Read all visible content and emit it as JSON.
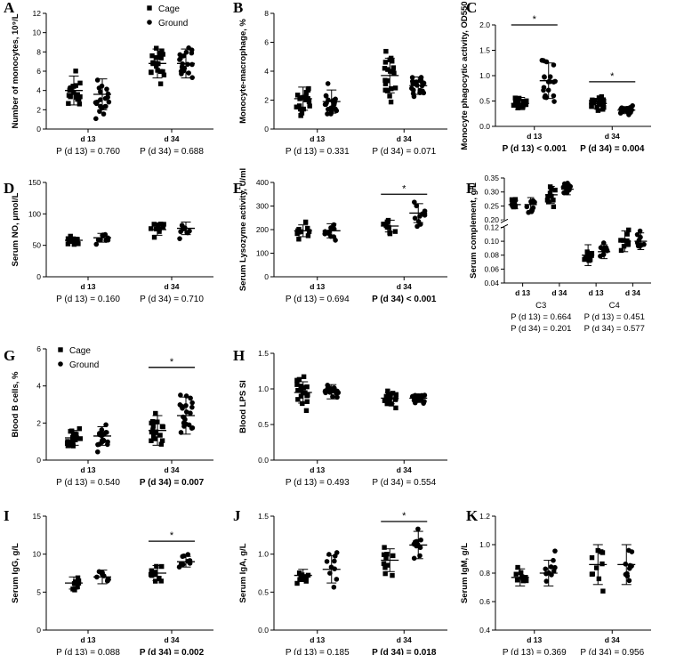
{
  "legend": {
    "cage": "Cage",
    "ground": "Ground"
  },
  "chart_data": [
    {
      "panel": "A",
      "type": "scatter",
      "ylabel": "Number of monocytes, 10⁹/L",
      "ylim": [
        0,
        12
      ],
      "yticks": [
        "0",
        "2",
        "4",
        "6",
        "8",
        "10",
        "12"
      ],
      "ytickvals": [
        0,
        2,
        4,
        6,
        8,
        10,
        12
      ],
      "categories": [
        "d 13",
        "d 34"
      ],
      "legend": "top-right",
      "series": [
        {
          "name": "Cage",
          "shape": "square",
          "mean": [
            4.0,
            6.8
          ],
          "sd": [
            1.5,
            1.5
          ]
        },
        {
          "name": "Ground",
          "shape": "circle",
          "mean": [
            3.6,
            6.8
          ],
          "sd": [
            1.6,
            1.5
          ]
        }
      ],
      "stars": [],
      "footer": [
        [
          "P (d 13) = 0.760",
          false
        ],
        [
          "P (d 34) = 0.688",
          false
        ]
      ]
    },
    {
      "panel": "B",
      "type": "scatter",
      "ylabel": "Monocyte-macrophage, %",
      "ylim": [
        0,
        8
      ],
      "yticks": [
        "0",
        "2",
        "4",
        "6",
        "8"
      ],
      "ytickvals": [
        0,
        2,
        4,
        6,
        8
      ],
      "categories": [
        "d 13",
        "d 34"
      ],
      "series": [
        {
          "name": "Cage",
          "shape": "square",
          "mean": [
            2.1,
            3.7
          ],
          "sd": [
            0.8,
            1.2
          ]
        },
        {
          "name": "Ground",
          "shape": "circle",
          "mean": [
            1.9,
            3.0
          ],
          "sd": [
            0.8,
            0.6
          ]
        }
      ],
      "stars": [],
      "footer": [
        [
          "P (d 13) = 0.331",
          false
        ],
        [
          "P (d 34) = 0.071",
          false
        ]
      ]
    },
    {
      "panel": "C",
      "type": "scatter",
      "ylabel": "Monocyte phagocytic activity, OD550",
      "ylim": [
        0,
        2
      ],
      "yticks": [
        "0.0",
        "0.5",
        "1.0",
        "1.5",
        "2.0"
      ],
      "ytickvals": [
        0,
        0.5,
        1.0,
        1.5,
        2.0
      ],
      "categories": [
        "d 13",
        "d 34"
      ],
      "series": [
        {
          "name": "Cage",
          "shape": "square",
          "mean": [
            0.45,
            0.45
          ],
          "sd": [
            0.12,
            0.1
          ]
        },
        {
          "name": "Ground",
          "shape": "circle",
          "mean": [
            0.9,
            0.32
          ],
          "sd": [
            0.35,
            0.07
          ]
        }
      ],
      "stars": [
        {
          "cat": 0,
          "y": 2.0,
          "text": "*"
        },
        {
          "cat": 1,
          "y": 0.88,
          "text": "*"
        }
      ],
      "footer": [
        [
          "P (d 13) < 0.001",
          true
        ],
        [
          "P (d 34) = 0.004",
          true
        ]
      ]
    },
    {
      "panel": "D",
      "type": "scatter",
      "ylabel": "Serum NO, μmol/L",
      "ylim": [
        0,
        150
      ],
      "yticks": [
        "0",
        "50",
        "100",
        "150"
      ],
      "ytickvals": [
        0,
        50,
        100,
        150
      ],
      "categories": [
        "d 13",
        "d 34"
      ],
      "series": [
        {
          "name": "Cage",
          "shape": "square",
          "mean": [
            58,
            75
          ],
          "sd": [
            5,
            9
          ]
        },
        {
          "name": "Ground",
          "shape": "circle",
          "mean": [
            62,
            77
          ],
          "sd": [
            7,
            10
          ]
        }
      ],
      "stars": [],
      "footer": [
        [
          "P (d 13) = 0.160",
          false
        ],
        [
          "P (d 34) = 0.710",
          false
        ]
      ]
    },
    {
      "panel": "E",
      "type": "scatter",
      "ylabel": "Serum Lysozyme activity, U/ml",
      "ylim": [
        0,
        400
      ],
      "yticks": [
        "0",
        "100",
        "200",
        "300",
        "400"
      ],
      "ytickvals": [
        0,
        100,
        200,
        300,
        400
      ],
      "categories": [
        "d 13",
        "d 34"
      ],
      "series": [
        {
          "name": "Cage",
          "shape": "square",
          "mean": [
            195,
            215
          ],
          "sd": [
            25,
            25
          ]
        },
        {
          "name": "Ground",
          "shape": "circle",
          "mean": [
            195,
            270
          ],
          "sd": [
            30,
            40
          ]
        }
      ],
      "stars": [
        {
          "cat": 1,
          "y": 350,
          "text": "*"
        }
      ],
      "footer": [
        [
          "P (d 13) = 0.694",
          false
        ],
        [
          "P (d 34) < 0.001",
          true
        ]
      ]
    },
    {
      "panel": "F",
      "type": "scatter",
      "ylabel": "Serum complement, g/L",
      "brokenAxis": true,
      "yticks": [
        "0.04",
        "0.06",
        "0.08",
        "0.10",
        "0.12",
        "0.20",
        "0.25",
        "0.30",
        "0.35"
      ],
      "ytickvals": [
        0.04,
        0.06,
        0.08,
        0.1,
        0.12,
        0.2,
        0.25,
        0.3,
        0.35
      ],
      "categories": [
        "d 13",
        "d 34",
        "d 13",
        "d 34"
      ],
      "groups": [
        "C3",
        "C4"
      ],
      "series": [
        {
          "name": "Cage",
          "shape": "square",
          "mean": [
            0.255,
            0.29,
            0.08,
            0.1
          ],
          "sd": [
            0.015,
            0.03,
            0.015,
            0.015
          ]
        },
        {
          "name": "Ground",
          "shape": "circle",
          "mean": [
            0.255,
            0.31,
            0.085,
            0.1
          ],
          "sd": [
            0.025,
            0.02,
            0.01,
            0.012
          ]
        }
      ],
      "stars": [],
      "footer": [
        [
          "C3",
          "C4"
        ],
        [
          "P (d 13) = 0.664",
          "P (d 13) = 0.451"
        ],
        [
          "P (d 34) = 0.201",
          "P (d 34) = 0.577"
        ]
      ]
    },
    {
      "panel": "G",
      "type": "scatter",
      "ylabel": "Blood B cells, %",
      "ylim": [
        0,
        6
      ],
      "yticks": [
        "0",
        "2",
        "4",
        "6"
      ],
      "ytickvals": [
        0,
        2,
        4,
        6
      ],
      "categories": [
        "d 13",
        "d 34"
      ],
      "legend": "top-left",
      "series": [
        {
          "name": "Cage",
          "shape": "square",
          "mean": [
            1.2,
            1.6
          ],
          "sd": [
            0.4,
            0.8
          ]
        },
        {
          "name": "Ground",
          "shape": "circle",
          "mean": [
            1.3,
            2.4
          ],
          "sd": [
            0.5,
            1.0
          ]
        }
      ],
      "stars": [
        {
          "cat": 1,
          "y": 5.0,
          "text": "*"
        }
      ],
      "footer": [
        [
          "P (d 13) = 0.540",
          false
        ],
        [
          "P (d 34) = 0.007",
          true
        ]
      ]
    },
    {
      "panel": "H",
      "type": "scatter",
      "ylabel": "Blood LPS SI",
      "ylim": [
        0,
        1.5
      ],
      "yticks": [
        "0.0",
        "0.5",
        "1.0",
        "1.5"
      ],
      "ytickvals": [
        0,
        0.5,
        1.0,
        1.5
      ],
      "categories": [
        "d 13",
        "d 34"
      ],
      "series": [
        {
          "name": "Cage",
          "shape": "square",
          "mean": [
            0.95,
            0.87
          ],
          "sd": [
            0.15,
            0.08
          ]
        },
        {
          "name": "Ground",
          "shape": "circle",
          "mean": [
            0.96,
            0.87
          ],
          "sd": [
            0.1,
            0.06
          ]
        }
      ],
      "stars": [],
      "footer": [
        [
          "P (d 13) = 0.493",
          false
        ],
        [
          "P (d 34) = 0.554",
          false
        ]
      ]
    },
    {
      "panel": "I",
      "type": "scatter",
      "ylabel": "Serum IgG, g/L",
      "ylim": [
        0,
        15
      ],
      "yticks": [
        "0",
        "5",
        "10",
        "15"
      ],
      "ytickvals": [
        0,
        5,
        10,
        15
      ],
      "categories": [
        "d 13",
        "d 34"
      ],
      "series": [
        {
          "name": "Cage",
          "shape": "square",
          "mean": [
            6.2,
            7.5
          ],
          "sd": [
            0.8,
            1.0
          ]
        },
        {
          "name": "Ground",
          "shape": "circle",
          "mean": [
            7.0,
            9.0
          ],
          "sd": [
            0.9,
            0.7
          ]
        }
      ],
      "stars": [
        {
          "cat": 1,
          "y": 11.7,
          "text": "*"
        }
      ],
      "footer": [
        [
          "P (d 13) = 0.088",
          false
        ],
        [
          "P (d 34) = 0.002",
          true
        ]
      ]
    },
    {
      "panel": "J",
      "type": "scatter",
      "ylabel": "Serum IgA, g/L",
      "ylim": [
        0,
        1.5
      ],
      "yticks": [
        "0.0",
        "0.5",
        "1.0",
        "1.5"
      ],
      "ytickvals": [
        0,
        0.5,
        1.0,
        1.5
      ],
      "categories": [
        "d 13",
        "d 34"
      ],
      "series": [
        {
          "name": "Cage",
          "shape": "square",
          "mean": [
            0.72,
            0.92
          ],
          "sd": [
            0.08,
            0.15
          ]
        },
        {
          "name": "Ground",
          "shape": "circle",
          "mean": [
            0.8,
            1.12
          ],
          "sd": [
            0.18,
            0.18
          ]
        }
      ],
      "stars": [
        {
          "cat": 1,
          "y": 1.43,
          "text": "*"
        }
      ],
      "footer": [
        [
          "P (d 13) = 0.185",
          false
        ],
        [
          "P (d 34) = 0.018",
          true
        ]
      ]
    },
    {
      "panel": "K",
      "type": "scatter",
      "ylabel": "Serum IgM, g/L",
      "ylim": [
        0.4,
        1.2
      ],
      "yticks": [
        "0.4",
        "0.6",
        "0.8",
        "1.0",
        "1.2"
      ],
      "ytickvals": [
        0.4,
        0.6,
        0.8,
        1.0,
        1.2
      ],
      "categories": [
        "d 13",
        "d 34"
      ],
      "series": [
        {
          "name": "Cage",
          "shape": "square",
          "mean": [
            0.77,
            0.86
          ],
          "sd": [
            0.06,
            0.14
          ]
        },
        {
          "name": "Ground",
          "shape": "circle",
          "mean": [
            0.8,
            0.86
          ],
          "sd": [
            0.09,
            0.14
          ]
        }
      ],
      "stars": [],
      "footer": [
        [
          "P (d 13) = 0.369",
          false
        ],
        [
          "P (d 34) = 0.956",
          false
        ]
      ]
    }
  ]
}
